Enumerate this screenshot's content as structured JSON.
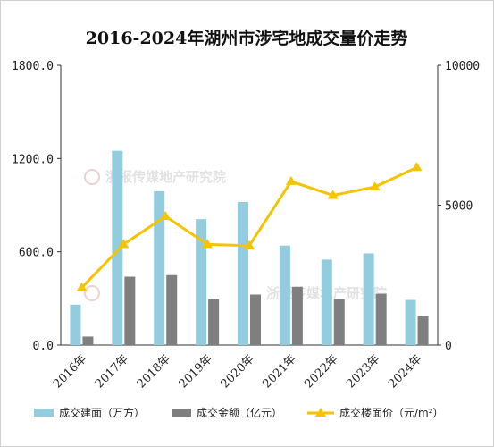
{
  "chart_data": {
    "type": "bar",
    "title": "2016-2024年湖州市涉宅地成交量价走势",
    "categories": [
      "2016年",
      "2017年",
      "2018年",
      "2019年",
      "2020年",
      "2021年",
      "2022年",
      "2023年",
      "2024年"
    ],
    "series": [
      {
        "name": "成交建面（万方）",
        "type": "bar",
        "axis": "left",
        "color": "#93cddd",
        "values": [
          260,
          1250,
          990,
          810,
          920,
          640,
          550,
          590,
          290
        ]
      },
      {
        "name": "成交金额（亿元）",
        "type": "bar",
        "axis": "left",
        "color": "#7f7f7f",
        "values": [
          55,
          440,
          450,
          295,
          325,
          375,
          295,
          330,
          185
        ]
      },
      {
        "name": "成交楼面价（元/m²）",
        "type": "line",
        "axis": "right",
        "color": "#f5c300",
        "values": [
          2050,
          3600,
          4600,
          3600,
          3550,
          5850,
          5350,
          5650,
          6350
        ]
      }
    ],
    "y_left": {
      "ticks": [
        "0.0",
        "600.0",
        "1200.0",
        "1800.0"
      ],
      "ylim": [
        0,
        1800
      ]
    },
    "y_right": {
      "ticks": [
        "0",
        "5000",
        "10000"
      ],
      "ylim": [
        0,
        10000
      ]
    },
    "legend_position": "bottom",
    "grid": false,
    "watermark": "浙报传媒地产研究院"
  }
}
